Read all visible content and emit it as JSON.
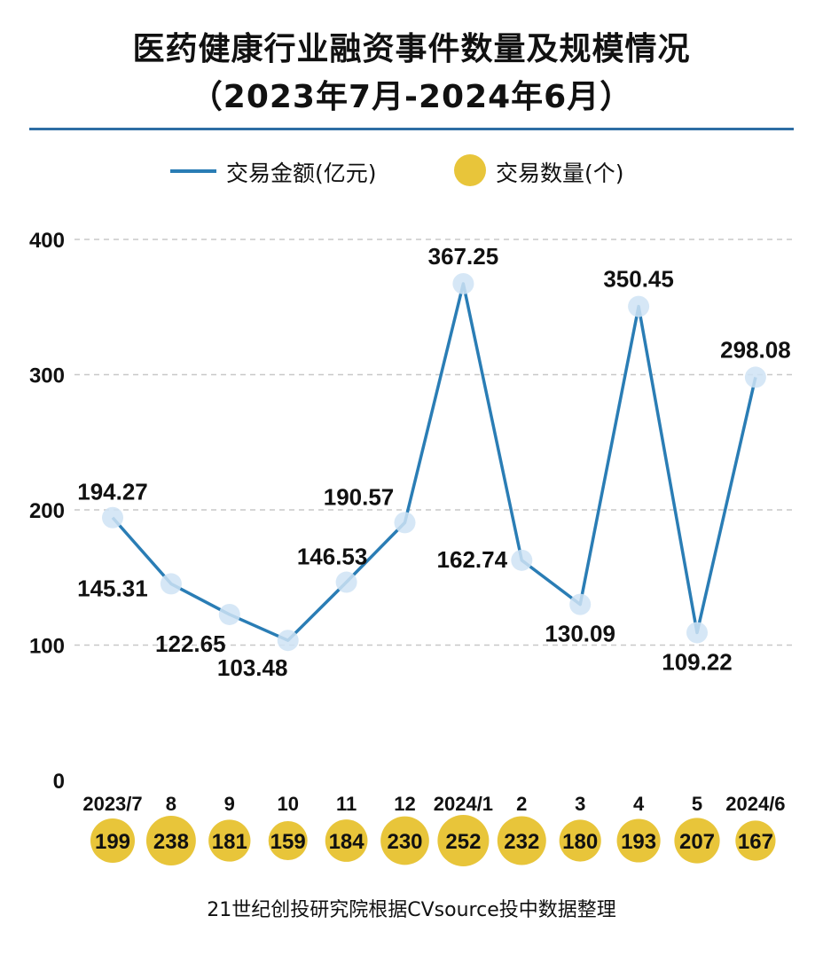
{
  "title": {
    "line1": "医药健康行业融资事件数量及规模情况",
    "line2": "（2023年7月-2024年6月）"
  },
  "legend": {
    "amount_label": "交易金额(亿元)",
    "count_label": "交易数量(个)"
  },
  "footer": "21世纪创投研究院根据CVsource投中数据整理",
  "colors": {
    "line": "#2a7db5",
    "marker_halo": "#cfe3f4",
    "count_bubble": "#e8c53a",
    "divider": "#2e6da4",
    "grid": "#c8c8c8"
  },
  "chart_data": {
    "type": "line",
    "title": "医药健康行业融资事件数量及规模情况（2023年7月-2024年6月）",
    "categories": [
      "2023/7",
      "8",
      "9",
      "10",
      "11",
      "12",
      "2024/1",
      "2",
      "3",
      "4",
      "5",
      "2024/6"
    ],
    "series": [
      {
        "name": "交易金额(亿元)",
        "values": [
          194.27,
          145.31,
          122.65,
          103.48,
          146.53,
          190.57,
          367.25,
          162.74,
          130.09,
          350.45,
          109.22,
          298.08
        ],
        "labels": [
          "194.27",
          "145.31",
          "122.65",
          "103.48",
          "146.53",
          "190.57",
          "367.25",
          "162.74",
          "130.09",
          "350.45",
          "109.22",
          "298.08"
        ]
      },
      {
        "name": "交易数量(个)",
        "values": [
          199,
          238,
          181,
          159,
          184,
          230,
          252,
          232,
          180,
          193,
          207,
          167
        ]
      }
    ],
    "y_ticks": [
      0,
      100,
      200,
      300,
      400
    ],
    "ylim": [
      0,
      400
    ],
    "grid": true,
    "legend_position": "top"
  }
}
